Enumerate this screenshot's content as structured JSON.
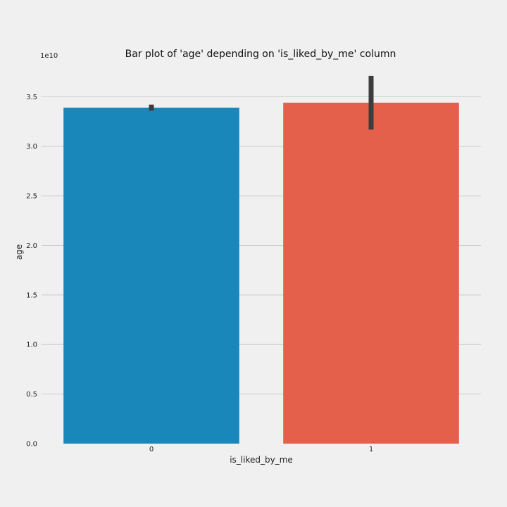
{
  "chart_data": {
    "type": "bar",
    "title": "Bar plot of 'age' depending on 'is_liked_by_me' column",
    "xlabel": "is_liked_by_me",
    "ylabel": "age",
    "y_offset_label": "1e10",
    "categories": [
      "0",
      "1"
    ],
    "values": [
      3.39,
      3.44
    ],
    "error_low": [
      3.36,
      3.17
    ],
    "error_high": [
      3.42,
      3.71
    ],
    "ylim": [
      0,
      3.73
    ],
    "yticks": [
      0.0,
      0.5,
      1.0,
      1.5,
      2.0,
      2.5,
      3.0,
      3.5
    ],
    "ytick_labels": [
      "0.0",
      "0.5",
      "1.0",
      "1.5",
      "2.0",
      "2.5",
      "3.0",
      "3.5"
    ],
    "colors": [
      "#1a87bb",
      "#e5604a"
    ],
    "error_color": "#3c3c3c",
    "grid": true,
    "legend": "none"
  }
}
